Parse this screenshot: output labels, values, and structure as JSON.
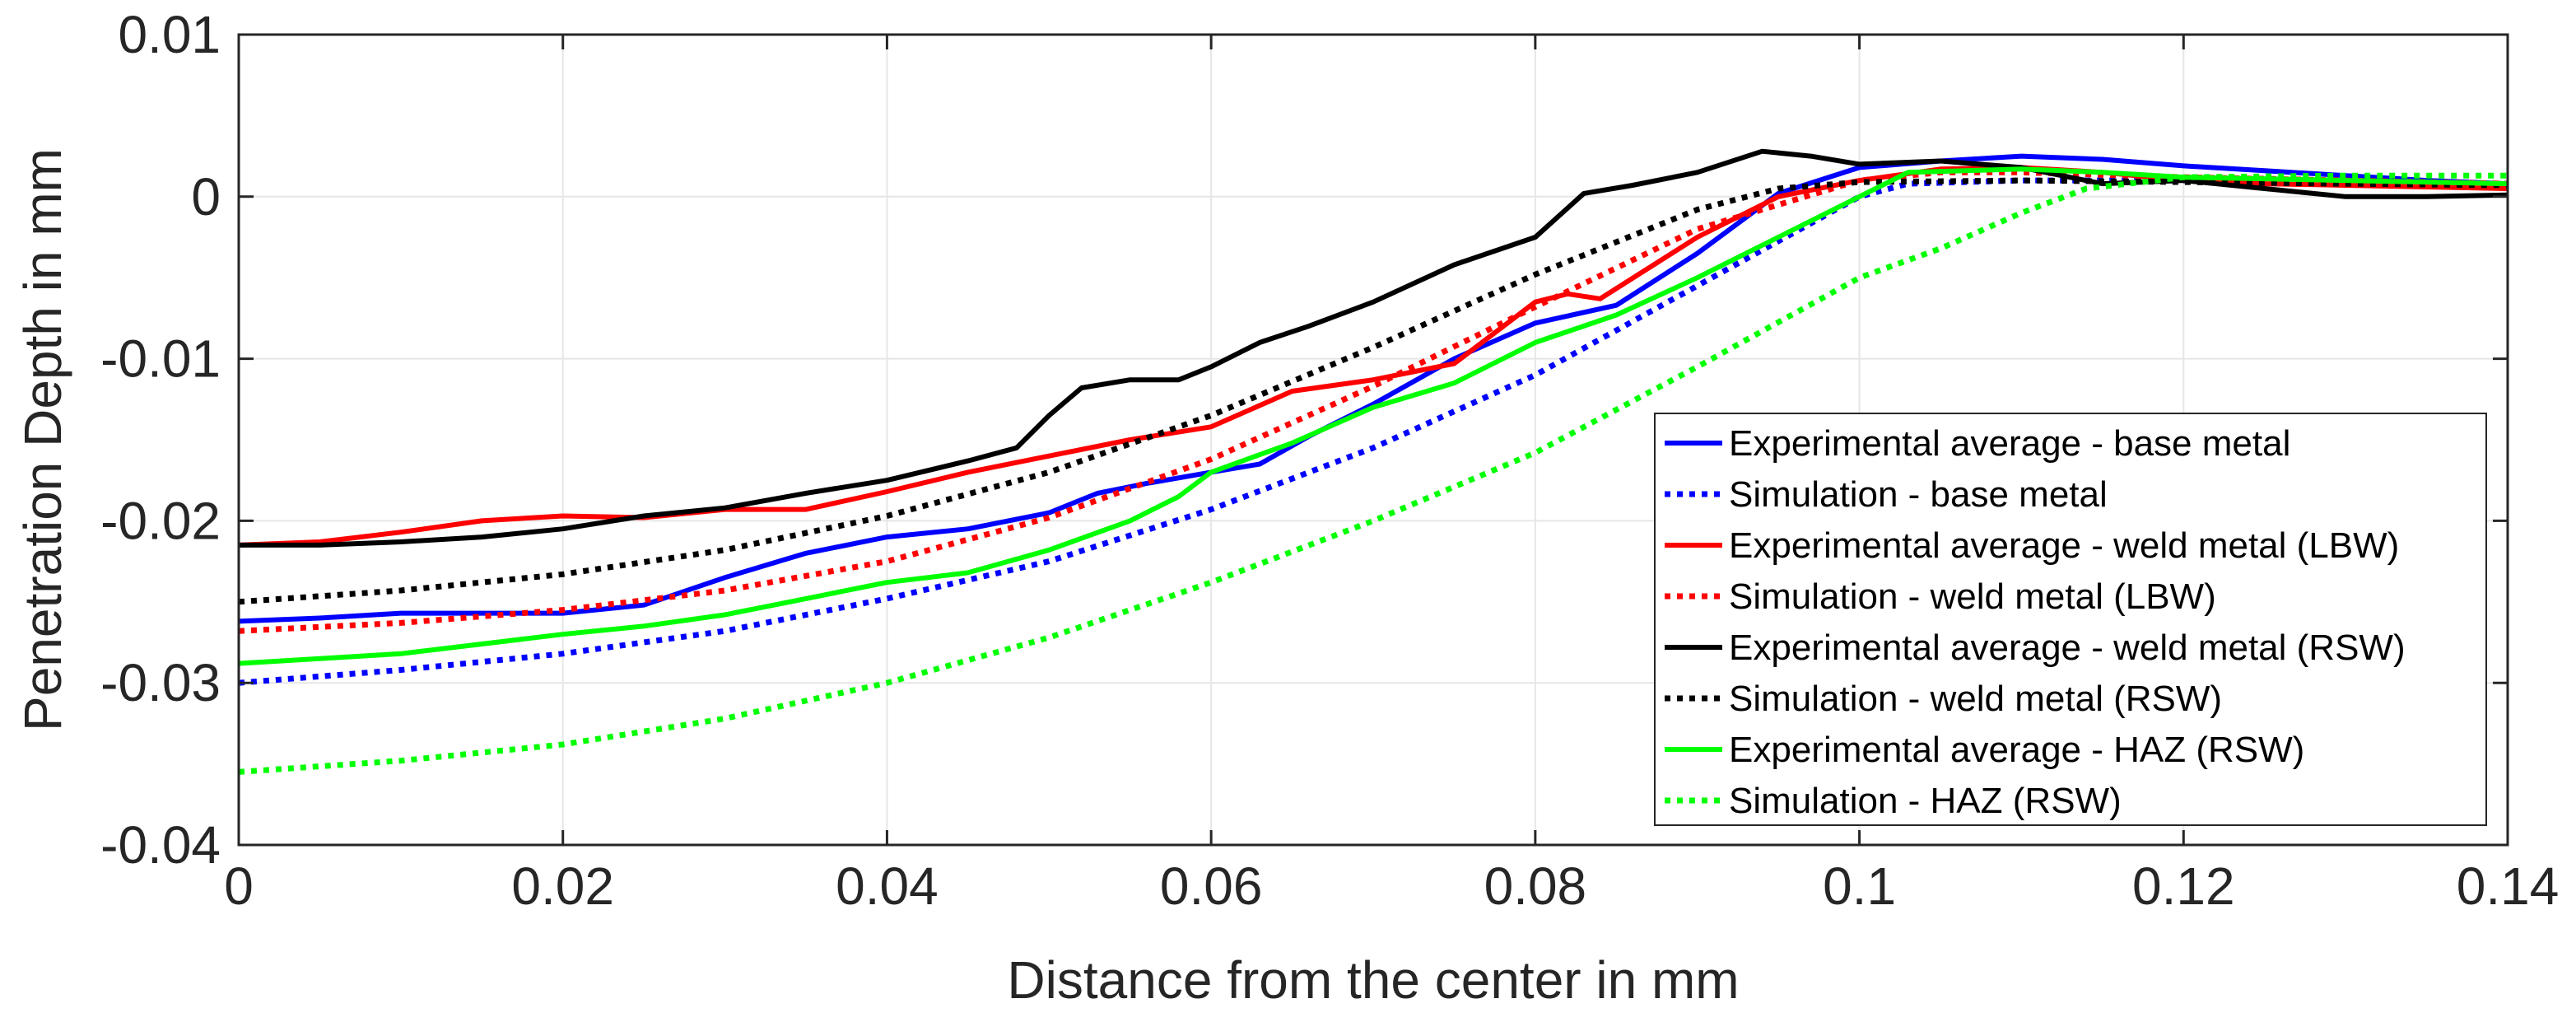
{
  "chart_data": {
    "type": "line",
    "title": "",
    "xlabel": "Distance from the center in mm",
    "ylabel": "Penetration Depth in mm",
    "xlim": [
      0,
      0.14
    ],
    "ylim": [
      -0.04,
      0.01
    ],
    "grid": true,
    "xticks": [
      0,
      0.02,
      0.04,
      0.06,
      0.08,
      0.1,
      0.12,
      0.14
    ],
    "xtick_labels": [
      "0",
      "0.02",
      "0.04",
      "0.06",
      "0.08",
      "0.1",
      "0.12",
      "0.14"
    ],
    "yticks": [
      0.01,
      0,
      -0.01,
      -0.02,
      -0.03,
      -0.04
    ],
    "ytick_labels": [
      "0.01",
      "0",
      "-0.01",
      "-0.02",
      "-0.03",
      "-0.04"
    ],
    "legend_position": "right",
    "series": [
      {
        "name": "Experimental average - base metal",
        "color": "#0000ff",
        "style": "solid",
        "x": [
          0,
          0.005,
          0.01,
          0.015,
          0.02,
          0.025,
          0.03,
          0.035,
          0.04,
          0.045,
          0.05,
          0.053,
          0.056,
          0.06,
          0.063,
          0.066,
          0.07,
          0.075,
          0.08,
          0.085,
          0.09,
          0.095,
          0.1,
          0.105,
          0.11,
          0.115,
          0.12,
          0.125,
          0.13,
          0.135,
          0.14
        ],
        "y": [
          -0.0262,
          -0.026,
          -0.0257,
          -0.0257,
          -0.0257,
          -0.0252,
          -0.0235,
          -0.022,
          -0.021,
          -0.0205,
          -0.0195,
          -0.0183,
          -0.0177,
          -0.017,
          -0.0165,
          -0.0148,
          -0.0128,
          -0.01,
          -0.0078,
          -0.0067,
          -0.0035,
          0.0002,
          0.0018,
          0.0022,
          0.0025,
          0.0023,
          0.0019,
          0.0016,
          0.0013,
          0.001,
          0.0008
        ]
      },
      {
        "name": "Simulation - base metal",
        "color": "#0000ff",
        "style": "dotted",
        "x": [
          0,
          0.01,
          0.02,
          0.03,
          0.04,
          0.05,
          0.06,
          0.07,
          0.08,
          0.09,
          0.1,
          0.103,
          0.11,
          0.12,
          0.13,
          0.14
        ],
        "y": [
          -0.03,
          -0.0292,
          -0.0282,
          -0.0268,
          -0.0248,
          -0.0225,
          -0.0193,
          -0.0155,
          -0.011,
          -0.0055,
          0.0,
          0.0008,
          0.001,
          0.001,
          0.0009,
          0.0008
        ]
      },
      {
        "name": "Experimental average - weld metal (LBW)",
        "color": "#ff0000",
        "style": "solid",
        "x": [
          0,
          0.005,
          0.01,
          0.015,
          0.02,
          0.025,
          0.03,
          0.035,
          0.04,
          0.045,
          0.05,
          0.055,
          0.06,
          0.065,
          0.07,
          0.075,
          0.08,
          0.082,
          0.084,
          0.09,
          0.095,
          0.1,
          0.105,
          0.11,
          0.115,
          0.12,
          0.125,
          0.13,
          0.135,
          0.14
        ],
        "y": [
          -0.0215,
          -0.0213,
          -0.0207,
          -0.02,
          -0.0197,
          -0.0198,
          -0.0193,
          -0.0193,
          -0.0182,
          -0.017,
          -0.016,
          -0.015,
          -0.0142,
          -0.012,
          -0.0113,
          -0.0103,
          -0.0065,
          -0.006,
          -0.0063,
          -0.0025,
          0.0,
          0.001,
          0.0017,
          0.0018,
          0.0015,
          0.001,
          0.0008,
          0.0007,
          0.0006,
          0.0005
        ]
      },
      {
        "name": "Simulation - weld metal (LBW)",
        "color": "#ff0000",
        "style": "dotted",
        "x": [
          0,
          0.01,
          0.02,
          0.03,
          0.04,
          0.05,
          0.06,
          0.07,
          0.08,
          0.09,
          0.1,
          0.105,
          0.11,
          0.12,
          0.13,
          0.14
        ],
        "y": [
          -0.0268,
          -0.0263,
          -0.0255,
          -0.0243,
          -0.0225,
          -0.0198,
          -0.0162,
          -0.0117,
          -0.0068,
          -0.002,
          0.001,
          0.0015,
          0.0015,
          0.0012,
          0.001,
          0.0008
        ]
      },
      {
        "name": "Experimental average - weld metal (RSW)",
        "color": "#000000",
        "style": "solid",
        "x": [
          0,
          0.005,
          0.01,
          0.015,
          0.02,
          0.025,
          0.03,
          0.035,
          0.04,
          0.045,
          0.048,
          0.05,
          0.052,
          0.055,
          0.058,
          0.06,
          0.063,
          0.066,
          0.07,
          0.075,
          0.08,
          0.083,
          0.086,
          0.09,
          0.094,
          0.097,
          0.1,
          0.105,
          0.11,
          0.115,
          0.12,
          0.125,
          0.13,
          0.135,
          0.14
        ],
        "y": [
          -0.0215,
          -0.0215,
          -0.0213,
          -0.021,
          -0.0205,
          -0.0197,
          -0.0192,
          -0.0183,
          -0.0175,
          -0.0163,
          -0.0155,
          -0.0135,
          -0.0118,
          -0.0113,
          -0.0113,
          -0.0105,
          -0.009,
          -0.008,
          -0.0065,
          -0.0042,
          -0.0025,
          0.0002,
          0.0007,
          0.0015,
          0.0028,
          0.0025,
          0.002,
          0.0022,
          0.0018,
          0.0008,
          0.001,
          0.0005,
          0.0,
          0.0,
          0.0001
        ]
      },
      {
        "name": "Simulation - weld metal (RSW)",
        "color": "#000000",
        "style": "dotted",
        "x": [
          0,
          0.01,
          0.02,
          0.03,
          0.04,
          0.05,
          0.06,
          0.07,
          0.08,
          0.09,
          0.095,
          0.1,
          0.11,
          0.12,
          0.13,
          0.14
        ],
        "y": [
          -0.025,
          -0.0243,
          -0.0233,
          -0.0218,
          -0.0197,
          -0.017,
          -0.0135,
          -0.0093,
          -0.0048,
          -0.0008,
          0.0005,
          0.0009,
          0.001,
          0.0009,
          0.0008,
          0.0007
        ]
      },
      {
        "name": "Experimental average - HAZ (RSW)",
        "color": "#00ff00",
        "style": "solid",
        "x": [
          0,
          0.005,
          0.01,
          0.015,
          0.02,
          0.025,
          0.03,
          0.035,
          0.04,
          0.045,
          0.05,
          0.055,
          0.058,
          0.06,
          0.065,
          0.07,
          0.075,
          0.08,
          0.085,
          0.09,
          0.095,
          0.1,
          0.103,
          0.11,
          0.115,
          0.12,
          0.13,
          0.14
        ],
        "y": [
          -0.0288,
          -0.0285,
          -0.0282,
          -0.0276,
          -0.027,
          -0.0265,
          -0.0258,
          -0.0248,
          -0.0238,
          -0.0232,
          -0.0218,
          -0.02,
          -0.0185,
          -0.017,
          -0.0152,
          -0.013,
          -0.0115,
          -0.009,
          -0.0073,
          -0.005,
          -0.0025,
          0.0,
          0.0015,
          0.0017,
          0.0015,
          0.0012,
          0.001,
          0.0008
        ]
      },
      {
        "name": "Simulation - HAZ (RSW)",
        "color": "#00ff00",
        "style": "dotted",
        "x": [
          0,
          0.01,
          0.02,
          0.03,
          0.04,
          0.05,
          0.06,
          0.07,
          0.08,
          0.09,
          0.1,
          0.105,
          0.11,
          0.114,
          0.12,
          0.13,
          0.14
        ],
        "y": [
          -0.0355,
          -0.0348,
          -0.0338,
          -0.0322,
          -0.03,
          -0.0272,
          -0.0238,
          -0.02,
          -0.0158,
          -0.0105,
          -0.005,
          -0.0032,
          -0.001,
          0.0005,
          0.0012,
          0.0013,
          0.0013
        ]
      }
    ]
  }
}
